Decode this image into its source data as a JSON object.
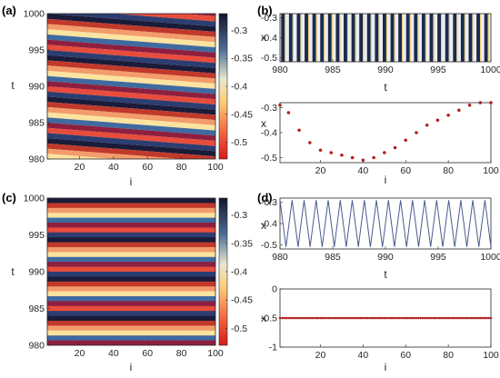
{
  "panel_labels": [
    "(a)",
    "(b)",
    "(c)",
    "(d)"
  ],
  "chart_data": [
    {
      "panel": "(a)",
      "type": "heatmap",
      "xlabel": "i",
      "ylabel": "t",
      "xlim": [
        1,
        100
      ],
      "ylim": [
        980,
        1000
      ],
      "xticks": [
        20,
        40,
        60,
        80,
        100
      ],
      "yticks": [
        980,
        985,
        990,
        995,
        1000
      ],
      "colorbar": {
        "range": [
          -0.53,
          -0.27
        ],
        "ticks": [
          -0.3,
          -0.35,
          -0.4,
          -0.45,
          -0.5
        ]
      },
      "pattern": "traveling wave, stripes tilted with spatial phase lag",
      "stripe_count": 28
    },
    {
      "panel": "(b) top",
      "type": "heatmap",
      "xlabel": "t",
      "ylabel": "x",
      "xlim": [
        980,
        1000
      ],
      "ylim": [
        -0.52,
        -0.28
      ],
      "xticks": [
        980,
        985,
        990,
        995,
        1000
      ],
      "yticks": [
        -0.3,
        -0.4,
        -0.5
      ],
      "oscillation_periods": 27
    },
    {
      "panel": "(b) bottom",
      "type": "scatter",
      "xlabel": "i",
      "ylabel": "x",
      "xlim": [
        1,
        100
      ],
      "ylim": [
        -0.52,
        -0.28
      ],
      "xticks": [
        20,
        40,
        60,
        80,
        100
      ],
      "yticks": [
        -0.3,
        -0.4,
        -0.5
      ],
      "x": [
        1,
        5,
        10,
        15,
        20,
        25,
        30,
        35,
        40,
        45,
        50,
        55,
        60,
        65,
        70,
        75,
        80,
        85,
        90,
        95,
        100
      ],
      "y": [
        -0.29,
        -0.32,
        -0.39,
        -0.44,
        -0.47,
        -0.48,
        -0.49,
        -0.5,
        -0.51,
        -0.5,
        -0.48,
        -0.46,
        -0.43,
        -0.4,
        -0.37,
        -0.35,
        -0.33,
        -0.31,
        -0.29,
        -0.28,
        -0.28
      ],
      "marker_color": "#b22222"
    },
    {
      "panel": "(c)",
      "type": "heatmap",
      "xlabel": "i",
      "ylabel": "t",
      "xlim": [
        1,
        100
      ],
      "ylim": [
        980,
        1000
      ],
      "xticks": [
        20,
        40,
        60,
        80,
        100
      ],
      "yticks": [
        980,
        985,
        990,
        995,
        1000
      ],
      "colorbar": {
        "range": [
          -0.53,
          -0.27
        ],
        "ticks": [
          -0.3,
          -0.35,
          -0.4,
          -0.45,
          -0.5
        ]
      },
      "pattern": "synchronized, horizontal stripes",
      "stripe_count": 30
    },
    {
      "panel": "(d) top",
      "type": "line",
      "xlabel": "t",
      "ylabel": "x",
      "xlim": [
        980,
        1000
      ],
      "ylim": [
        -0.52,
        -0.28
      ],
      "xticks": [
        980,
        985,
        990,
        995,
        1000
      ],
      "yticks": [
        -0.3,
        -0.4,
        -0.5
      ],
      "oscillation": {
        "min": -0.51,
        "max": -0.29,
        "periods": 17.5,
        "shape": "triangle"
      },
      "line_color": "#4b5a8c"
    },
    {
      "panel": "(d) bottom",
      "type": "scatter",
      "xlabel": "i",
      "ylabel": "x",
      "xlim": [
        1,
        100
      ],
      "ylim": [
        -1,
        0
      ],
      "xticks": [
        20,
        40,
        60,
        80,
        100
      ],
      "yticks": [
        0,
        -0.5,
        -1
      ],
      "constant_value": -0.5,
      "marker_color": "#b22222"
    }
  ]
}
